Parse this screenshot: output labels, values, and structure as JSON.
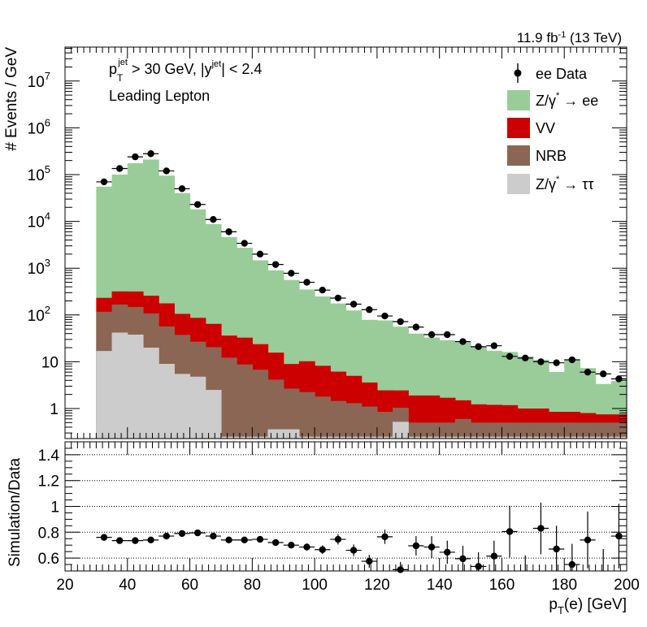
{
  "chart_data": {
    "type": "histogram",
    "header_right": "11.9 fb⁻¹ (13 TeV)",
    "annotation_1": "pᴛʲᵉᵗ > 30 GeV,  |yʲᵉᵗ| < 2.4",
    "annotation_2": "Leading Lepton",
    "top_ylabel": "# Events / GeV",
    "bottom_ylabel": "Simulation/Data",
    "xlabel": "pₜ(e) [GeV]",
    "xlim": [
      20,
      200
    ],
    "top_ylim": [
      0.25,
      50000000
    ],
    "top_yscale": "log",
    "bottom_ylim": [
      0.5,
      1.5
    ],
    "x_ticks": [
      "20",
      "40",
      "60",
      "80",
      "100",
      "120",
      "140",
      "160",
      "180",
      "200"
    ],
    "top_y_ticks": [
      "1",
      "10",
      "10²",
      "10³",
      "10⁴",
      "10⁵",
      "10⁶",
      "10⁷"
    ],
    "bottom_y_ticks": [
      "0.6",
      "0.8",
      "1",
      "1.2",
      "1.4"
    ],
    "bin_edges": [
      30,
      35,
      40,
      45,
      50,
      55,
      60,
      65,
      70,
      75,
      80,
      85,
      90,
      95,
      100,
      105,
      110,
      115,
      120,
      125,
      130,
      135,
      140,
      145,
      150,
      155,
      160,
      165,
      170,
      175,
      180,
      185,
      190,
      195,
      200
    ],
    "legend": [
      {
        "label": "ee Data",
        "type": "marker",
        "color": "#000000"
      },
      {
        "label": "Z/γ* → ee",
        "type": "fill",
        "color": "#99cc99"
      },
      {
        "label": "VV",
        "type": "fill",
        "color": "#cc0000"
      },
      {
        "label": "NRB",
        "type": "fill",
        "color": "#8b6655"
      },
      {
        "label": "Z/γ* → ττ",
        "type": "fill",
        "color": "#cccccc"
      }
    ],
    "series": [
      {
        "name": "Z/γ* → ττ",
        "values": [
          17,
          42,
          38,
          20,
          9,
          5.5,
          4.8,
          2.5,
          0.25,
          0.25,
          0.25,
          0.36,
          0.36,
          0.25,
          0.25,
          0.25,
          0.25,
          0.25,
          0.25,
          0.52,
          0.25,
          0.25,
          0.25,
          0.25,
          0.25,
          0.25,
          0.25,
          0.25,
          0.25,
          0.25,
          0.25,
          0.25,
          0.25,
          0.25
        ]
      },
      {
        "name": "NRB",
        "values": [
          100,
          125,
          110,
          88,
          48,
          32,
          22,
          18,
          12,
          8.5,
          6.5,
          3.8,
          2.3,
          2.0,
          1.55,
          1.2,
          1.05,
          0.85,
          0.6,
          0.52,
          0.25,
          0.25,
          0.25,
          0.35,
          0.25,
          0.25,
          0.25,
          0.25,
          0.25,
          0.25,
          0.25,
          0.25,
          0.25,
          0.25
        ]
      },
      {
        "name": "VV",
        "values": [
          115,
          152,
          170,
          150,
          120,
          68,
          60,
          44,
          24,
          24,
          17,
          11.5,
          6.3,
          8.0,
          6.4,
          4.7,
          3.7,
          2.5,
          1.6,
          1.4,
          1.4,
          1.4,
          1.2,
          0.9,
          0.73,
          0.7,
          0.68,
          0.5,
          0.5,
          0.35,
          0.35,
          0.3,
          0.25,
          0.25
        ]
      },
      {
        "name": "Z/γ* → ee",
        "values": [
          55000,
          100000,
          175000,
          210000,
          95000,
          40000,
          18000,
          8700,
          4600,
          2700,
          1450,
          880,
          550,
          340,
          240,
          170,
          120,
          75,
          74,
          54,
          38,
          31,
          27,
          25,
          20,
          16,
          15,
          12,
          10,
          5.2,
          10,
          6.5,
          2.6,
          3.1
        ]
      }
    ],
    "data": [
      {
        "x": 32.5,
        "y": 70000,
        "ratio": 0.76,
        "ratio_err": 0.008
      },
      {
        "x": 37.5,
        "y": 135000,
        "ratio": 0.735,
        "ratio_err": 0.006
      },
      {
        "x": 42.5,
        "y": 240000,
        "ratio": 0.735,
        "ratio_err": 0.005
      },
      {
        "x": 47.5,
        "y": 280000,
        "ratio": 0.74,
        "ratio_err": 0.005
      },
      {
        "x": 52.5,
        "y": 120000,
        "ratio": 0.77,
        "ratio_err": 0.006
      },
      {
        "x": 57.5,
        "y": 50000,
        "ratio": 0.79,
        "ratio_err": 0.007
      },
      {
        "x": 62.5,
        "y": 23000,
        "ratio": 0.795,
        "ratio_err": 0.009
      },
      {
        "x": 67.5,
        "y": 11000,
        "ratio": 0.77,
        "ratio_err": 0.01
      },
      {
        "x": 72.5,
        "y": 6000,
        "ratio": 0.74,
        "ratio_err": 0.012
      },
      {
        "x": 77.5,
        "y": 3400,
        "ratio": 0.74,
        "ratio_err": 0.015
      },
      {
        "x": 82.5,
        "y": 2000,
        "ratio": 0.745,
        "ratio_err": 0.016
      },
      {
        "x": 87.5,
        "y": 1200,
        "ratio": 0.72,
        "ratio_err": 0.02
      },
      {
        "x": 92.5,
        "y": 780,
        "ratio": 0.7,
        "ratio_err": 0.022
      },
      {
        "x": 97.5,
        "y": 500,
        "ratio": 0.685,
        "ratio_err": 0.028
      },
      {
        "x": 102.5,
        "y": 340,
        "ratio": 0.665,
        "ratio_err": 0.033
      },
      {
        "x": 107.5,
        "y": 230,
        "ratio": 0.745,
        "ratio_err": 0.04
      },
      {
        "x": 112.5,
        "y": 170,
        "ratio": 0.66,
        "ratio_err": 0.045
      },
      {
        "x": 117.5,
        "y": 130,
        "ratio": 0.575,
        "ratio_err": 0.05
      },
      {
        "x": 122.5,
        "y": 95,
        "ratio": 0.765,
        "ratio_err": 0.055
      },
      {
        "x": 127.5,
        "y": 72,
        "ratio": 0.51,
        "ratio_err": 0.06
      },
      {
        "x": 132.5,
        "y": 55,
        "ratio": 0.695,
        "ratio_err": 0.075
      },
      {
        "x": 137.5,
        "y": 38,
        "ratio": 0.685,
        "ratio_err": 0.085
      },
      {
        "x": 142.5,
        "y": 38,
        "ratio": 0.645,
        "ratio_err": 0.09
      },
      {
        "x": 147.5,
        "y": 27,
        "ratio": 0.595,
        "ratio_err": 0.1
      },
      {
        "x": 152.5,
        "y": 21,
        "ratio": 0.535,
        "ratio_err": 0.11
      },
      {
        "x": 157.5,
        "y": 22,
        "ratio": 0.615,
        "ratio_err": 0.12
      },
      {
        "x": 162.5,
        "y": 13,
        "ratio": 0.805,
        "ratio_err": 0.2
      },
      {
        "x": 167.5,
        "y": 12,
        "ratio": 0.47,
        "ratio_err": 0.15
      },
      {
        "x": 172.5,
        "y": 10,
        "ratio": 0.83,
        "ratio_err": 0.2
      },
      {
        "x": 177.5,
        "y": 9.5,
        "ratio": 0.67,
        "ratio_err": 0.18
      },
      {
        "x": 182.5,
        "y": 11,
        "ratio": 0.55,
        "ratio_err": 0.16
      },
      {
        "x": 187.5,
        "y": 6,
        "ratio": 0.74,
        "ratio_err": 0.22
      },
      {
        "x": 192.5,
        "y": 5.5,
        "ratio": 0.47,
        "ratio_err": 0.2
      },
      {
        "x": 197.5,
        "y": 4.3,
        "ratio": 0.77,
        "ratio_err": 0.25
      }
    ]
  }
}
